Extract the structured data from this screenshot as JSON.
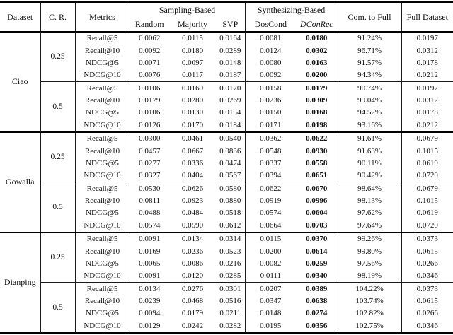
{
  "header": {
    "dataset": "Dataset",
    "cr": "C. R.",
    "metrics": "Metrics",
    "sampling_group": "Sampling-Based",
    "synthesizing_group": "Synthesizing-Based",
    "sampling_cols": [
      "Random",
      "Majority",
      "SVP"
    ],
    "synthesizing_cols": [
      "DosCond",
      "DConRec"
    ],
    "com_to_full": "Com. to Full",
    "full_dataset": "Full Dataset"
  },
  "chart_data": {
    "type": "table",
    "columns": [
      "Dataset",
      "C. R.",
      "Metrics",
      "Random",
      "Majority",
      "SVP",
      "DosCond",
      "DConRec",
      "Com. to Full",
      "Full Dataset"
    ],
    "bold_column": "DConRec"
  },
  "table": {
    "datasets": [
      {
        "name": "Ciao",
        "blocks": [
          {
            "cr": "0.25",
            "rows": [
              [
                "Recall@5",
                "0.0062",
                "0.0115",
                "0.0164",
                "0.0081",
                "0.0180",
                "91.24%",
                "0.0197"
              ],
              [
                "Recall@10",
                "0.0092",
                "0.0180",
                "0.0289",
                "0.0124",
                "0.0302",
                "96.71%",
                "0.0312"
              ],
              [
                "NDCG@5",
                "0.0071",
                "0.0097",
                "0.0148",
                "0.0080",
                "0.0163",
                "91.57%",
                "0.0178"
              ],
              [
                "NDCG@10",
                "0.0076",
                "0.0117",
                "0.0187",
                "0.0092",
                "0.0200",
                "94.34%",
                "0.0212"
              ]
            ]
          },
          {
            "cr": "0.5",
            "rows": [
              [
                "Recall@5",
                "0.0106",
                "0.0169",
                "0.0170",
                "0.0158",
                "0.0179",
                "90.74%",
                "0.0197"
              ],
              [
                "Recall@10",
                "0.0179",
                "0.0280",
                "0.0269",
                "0.0236",
                "0.0309",
                "99.04%",
                "0.0312"
              ],
              [
                "NDCG@5",
                "0.0106",
                "0.0130",
                "0.0154",
                "0.0150",
                "0.0168",
                "94.52%",
                "0.0178"
              ],
              [
                "NDCG@10",
                "0.0126",
                "0.0170",
                "0.0184",
                "0.0171",
                "0.0198",
                "93.16%",
                "0.0212"
              ]
            ]
          }
        ]
      },
      {
        "name": "Gowalla",
        "blocks": [
          {
            "cr": "0.25",
            "rows": [
              [
                "Recall@5",
                "0.0300",
                "0.0461",
                "0.0540",
                "0.0362",
                "0.0622",
                "91.61%",
                "0.0679"
              ],
              [
                "Recall@10",
                "0.0457",
                "0.0667",
                "0.0836",
                "0.0548",
                "0.0930",
                "91.63%",
                "0.1015"
              ],
              [
                "NDCG@5",
                "0.0277",
                "0.0336",
                "0.0474",
                "0.0337",
                "0.0558",
                "90.11%",
                "0.0619"
              ],
              [
                "NDCG@10",
                "0.0327",
                "0.0404",
                "0.0567",
                "0.0394",
                "0.0651",
                "90.42%",
                "0.0720"
              ]
            ]
          },
          {
            "cr": "0.5",
            "rows": [
              [
                "Recall@5",
                "0.0530",
                "0.0626",
                "0.0580",
                "0.0622",
                "0.0670",
                "98.64%",
                "0.0679"
              ],
              [
                "Recall@10",
                "0.0811",
                "0.0923",
                "0.0880",
                "0.0919",
                "0.0996",
                "98.13%",
                "0.1015"
              ],
              [
                "NDCG@5",
                "0.0488",
                "0.0484",
                "0.0518",
                "0.0574",
                "0.0604",
                "97.62%",
                "0.0619"
              ],
              [
                "NDCG@10",
                "0.0574",
                "0.0590",
                "0.0612",
                "0.0664",
                "0.0703",
                "97.64%",
                "0.0720"
              ]
            ]
          }
        ]
      },
      {
        "name": "Dianping",
        "blocks": [
          {
            "cr": "0.25",
            "rows": [
              [
                "Recall@5",
                "0.0091",
                "0.0134",
                "0.0314",
                "0.0115",
                "0.0370",
                "99.26%",
                "0.0373"
              ],
              [
                "Recall@10",
                "0.0169",
                "0.0236",
                "0.0523",
                "0.0200",
                "0.0614",
                "99.80%",
                "0.0615"
              ],
              [
                "NDCG@5",
                "0.0065",
                "0.0086",
                "0.0216",
                "0.0082",
                "0.0259",
                "97.56%",
                "0.0266"
              ],
              [
                "NDCG@10",
                "0.0091",
                "0.0120",
                "0.0285",
                "0.0111",
                "0.0340",
                "98.19%",
                "0.0346"
              ]
            ]
          },
          {
            "cr": "0.5",
            "rows": [
              [
                "Recall@5",
                "0.0134",
                "0.0276",
                "0.0301",
                "0.0207",
                "0.0389",
                "104.22%",
                "0.0373"
              ],
              [
                "Recall@10",
                "0.0239",
                "0.0468",
                "0.0516",
                "0.0347",
                "0.0638",
                "103.74%",
                "0.0615"
              ],
              [
                "NDCG@5",
                "0.0094",
                "0.0179",
                "0.0211",
                "0.0148",
                "0.0274",
                "102.82%",
                "0.0266"
              ],
              [
                "NDCG@10",
                "0.0129",
                "0.0242",
                "0.0282",
                "0.0195",
                "0.0356",
                "102.75%",
                "0.0346"
              ]
            ]
          }
        ]
      }
    ]
  }
}
